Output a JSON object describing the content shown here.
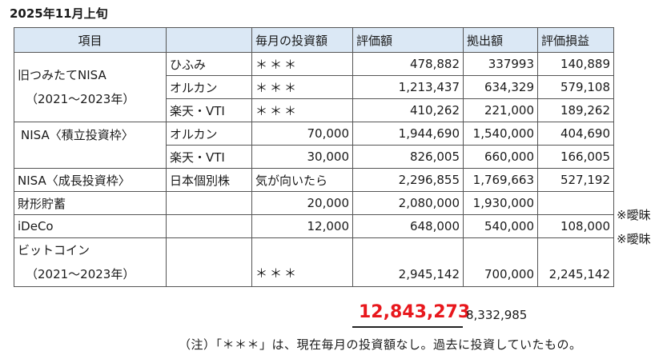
{
  "title": "2025年11月上旬",
  "headers": [
    "項目",
    "",
    "毎月の投資額",
    "評価額",
    "拠出額",
    "評価損益"
  ],
  "groups": {
    "kyu_nisa": {
      "label1": "旧つみたてNISA",
      "label2": "（2021〜2023年）"
    },
    "nisa_tsumitate": {
      "label": "NISA〈積立投資枠〉"
    },
    "nisa_seicho": {
      "label": "NISA〈成長投資枠〉"
    },
    "zaikei": {
      "label": "財形貯蓄"
    },
    "ideco": {
      "label": "iDeCo"
    },
    "bitcoin": {
      "label1": "ビットコイン",
      "label2": "（2021〜2023年）"
    }
  },
  "rows": [
    {
      "fund": "ひふみ",
      "monthly": "＊＊＊",
      "valuation": "478,882",
      "contribution": "337993",
      "gain": "140,889"
    },
    {
      "fund": "オルカン",
      "monthly": "＊＊＊",
      "valuation": "1,213,437",
      "contribution": "634,329",
      "gain": "579,108"
    },
    {
      "fund": "楽天・VTI",
      "monthly": "＊＊＊",
      "valuation": "410,262",
      "contribution": "221,000",
      "gain": "189,262"
    },
    {
      "fund": "オルカン",
      "monthly": "70,000",
      "valuation": "1,944,690",
      "contribution": "1,540,000",
      "gain": "404,690"
    },
    {
      "fund": "楽天・VTI",
      "monthly": "30,000",
      "valuation": "826,005",
      "contribution": "660,000",
      "gain": "166,005"
    },
    {
      "fund": "日本個別株",
      "monthly": "気が向いたら",
      "valuation": "2,296,855",
      "contribution": "1,769,663",
      "gain": "527,192"
    },
    {
      "fund": "",
      "monthly": "20,000",
      "valuation": "2,080,000",
      "contribution": "1,930,000",
      "gain": ""
    },
    {
      "fund": "",
      "monthly": "12,000",
      "valuation": "648,000",
      "contribution": "540,000",
      "gain": "108,000"
    },
    {
      "fund": "",
      "monthly": "＊＊＊",
      "valuation": "2,945,142",
      "contribution": "700,000",
      "gain": "2,245,142"
    }
  ],
  "side_notes": {
    "zaikei": "※曖昧",
    "ideco": "※曖昧"
  },
  "totals": {
    "valuation": "12,843,273",
    "contribution": "8,332,985"
  },
  "note": "（注）「＊＊＊」は、現在毎月の投資額なし。過去に投資していたもの。",
  "colors": {
    "header_bg": "#dbe8f5",
    "total": "#e8171c"
  }
}
